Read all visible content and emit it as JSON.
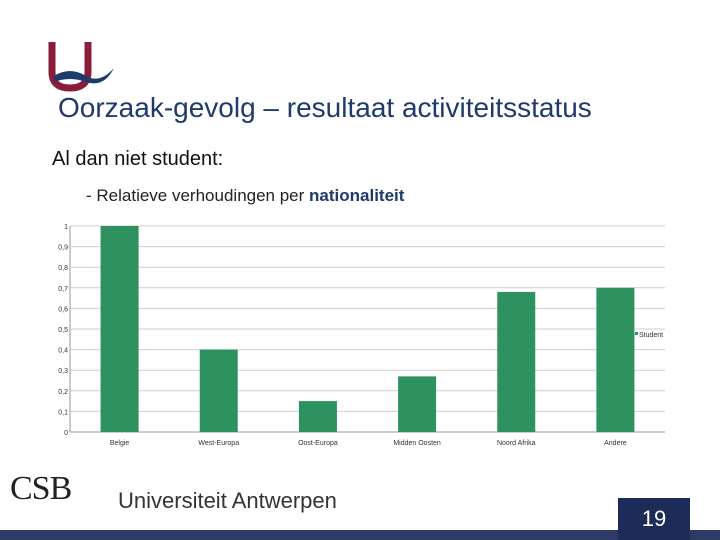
{
  "slide": {
    "title": "Oorzaak-gevolg – resultaat activiteitsstatus",
    "subtitle": "Al dan niet student:",
    "bullet_prefix": "- Relatieve verhoudingen per ",
    "bullet_highlight": "nationaliteit",
    "page_number": "19"
  },
  "footer": {
    "csb_text": "CSB",
    "university": "Universiteit Antwerpen"
  },
  "colors": {
    "title": "#1f3a6b",
    "bar": "#2e9160",
    "logo": "#8a1c3c",
    "footer": "#1c2b57"
  },
  "chart_data": {
    "type": "bar",
    "categories": [
      "Belgie",
      "West-Europa",
      "Oost-Europa",
      "Midden Oosten",
      "Noord Afrika",
      "Andere"
    ],
    "series": [
      {
        "name": "Student",
        "values": [
          1.0,
          0.4,
          0.15,
          0.27,
          0.68,
          0.7
        ]
      }
    ],
    "yticks": [
      "0",
      "0,1",
      "0,2",
      "0,3",
      "0,4",
      "0,5",
      "0,6",
      "0,7",
      "0,8",
      "0,9",
      "1"
    ],
    "ylim": [
      0,
      1
    ],
    "grid": true,
    "legend": "right"
  }
}
